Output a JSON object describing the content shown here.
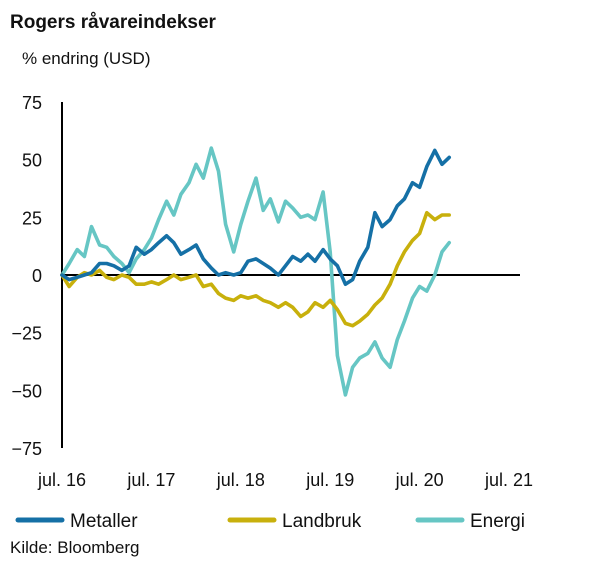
{
  "chart_data": {
    "type": "line",
    "title": "Rogers råvareindekser",
    "ylabel": "% endring (USD)",
    "ylim": [
      -75,
      75
    ],
    "yticks": [
      75,
      50,
      25,
      0,
      -25,
      -50,
      -75
    ],
    "xlim": [
      2016.5,
      2021.6
    ],
    "xticks": [
      {
        "value": 2016.5,
        "label": "jul. 16"
      },
      {
        "value": 2017.5,
        "label": "jul. 17"
      },
      {
        "value": 2018.5,
        "label": "jul. 18"
      },
      {
        "value": 2019.5,
        "label": "jul. 19"
      },
      {
        "value": 2020.5,
        "label": "jul. 20"
      },
      {
        "value": 2021.5,
        "label": "jul. 21"
      }
    ],
    "grid": false,
    "legend": "bottom",
    "source": "Kilde: Bloomberg",
    "series": [
      {
        "name": "Metaller",
        "color": "#1570a6",
        "points": [
          [
            2016.5,
            0
          ],
          [
            2016.58,
            -2
          ],
          [
            2016.67,
            -1
          ],
          [
            2016.75,
            0
          ],
          [
            2016.83,
            1
          ],
          [
            2016.92,
            5
          ],
          [
            2017.0,
            5
          ],
          [
            2017.08,
            4
          ],
          [
            2017.17,
            2
          ],
          [
            2017.25,
            4
          ],
          [
            2017.33,
            12
          ],
          [
            2017.42,
            9
          ],
          [
            2017.5,
            11
          ],
          [
            2017.58,
            14
          ],
          [
            2017.67,
            17
          ],
          [
            2017.75,
            14
          ],
          [
            2017.83,
            9
          ],
          [
            2017.92,
            11
          ],
          [
            2018.0,
            13
          ],
          [
            2018.08,
            7
          ],
          [
            2018.17,
            3
          ],
          [
            2018.25,
            0
          ],
          [
            2018.33,
            1
          ],
          [
            2018.42,
            0
          ],
          [
            2018.5,
            1
          ],
          [
            2018.58,
            6
          ],
          [
            2018.67,
            7
          ],
          [
            2018.75,
            5
          ],
          [
            2018.83,
            3
          ],
          [
            2018.92,
            0
          ],
          [
            2019.0,
            4
          ],
          [
            2019.08,
            8
          ],
          [
            2019.17,
            6
          ],
          [
            2019.25,
            9
          ],
          [
            2019.33,
            6
          ],
          [
            2019.42,
            11
          ],
          [
            2019.5,
            7
          ],
          [
            2019.58,
            4
          ],
          [
            2019.67,
            -4
          ],
          [
            2019.75,
            -2
          ],
          [
            2019.83,
            6
          ],
          [
            2019.92,
            12
          ],
          [
            2020.0,
            27
          ],
          [
            2020.08,
            21
          ],
          [
            2020.17,
            24
          ],
          [
            2020.25,
            30
          ],
          [
            2020.33,
            33
          ],
          [
            2020.42,
            40
          ],
          [
            2020.5,
            38
          ],
          [
            2020.58,
            47
          ],
          [
            2020.67,
            54
          ],
          [
            2020.75,
            48
          ],
          [
            2020.83,
            51
          ]
        ]
      },
      {
        "name": "Landbruk",
        "color": "#c8b00c",
        "points": [
          [
            2016.5,
            0
          ],
          [
            2016.58,
            -5
          ],
          [
            2016.67,
            -1
          ],
          [
            2016.75,
            1
          ],
          [
            2016.83,
            0
          ],
          [
            2016.92,
            2
          ],
          [
            2017.0,
            -1
          ],
          [
            2017.08,
            -2
          ],
          [
            2017.17,
            0
          ],
          [
            2017.25,
            -1
          ],
          [
            2017.33,
            -4
          ],
          [
            2017.42,
            -4
          ],
          [
            2017.5,
            -3
          ],
          [
            2017.58,
            -4
          ],
          [
            2017.67,
            -2
          ],
          [
            2017.75,
            0
          ],
          [
            2017.83,
            -2
          ],
          [
            2017.92,
            -1
          ],
          [
            2018.0,
            0
          ],
          [
            2018.08,
            -5
          ],
          [
            2018.17,
            -4
          ],
          [
            2018.25,
            -8
          ],
          [
            2018.33,
            -10
          ],
          [
            2018.42,
            -11
          ],
          [
            2018.5,
            -9
          ],
          [
            2018.58,
            -10
          ],
          [
            2018.67,
            -9
          ],
          [
            2018.75,
            -11
          ],
          [
            2018.83,
            -12
          ],
          [
            2018.92,
            -14
          ],
          [
            2019.0,
            -12
          ],
          [
            2019.08,
            -14
          ],
          [
            2019.17,
            -18
          ],
          [
            2019.25,
            -16
          ],
          [
            2019.33,
            -12
          ],
          [
            2019.42,
            -14
          ],
          [
            2019.5,
            -11
          ],
          [
            2019.58,
            -15
          ],
          [
            2019.67,
            -21
          ],
          [
            2019.75,
            -22
          ],
          [
            2019.83,
            -20
          ],
          [
            2019.92,
            -17
          ],
          [
            2020.0,
            -13
          ],
          [
            2020.08,
            -10
          ],
          [
            2020.17,
            -4
          ],
          [
            2020.25,
            4
          ],
          [
            2020.33,
            10
          ],
          [
            2020.42,
            15
          ],
          [
            2020.5,
            18
          ],
          [
            2020.58,
            27
          ],
          [
            2020.67,
            24
          ],
          [
            2020.75,
            26
          ],
          [
            2020.83,
            26
          ]
        ]
      },
      {
        "name": "Energi",
        "color": "#66c6c4",
        "points": [
          [
            2016.5,
            0
          ],
          [
            2016.58,
            5
          ],
          [
            2016.67,
            11
          ],
          [
            2016.75,
            8
          ],
          [
            2016.83,
            21
          ],
          [
            2016.92,
            13
          ],
          [
            2017.0,
            12
          ],
          [
            2017.08,
            8
          ],
          [
            2017.17,
            5
          ],
          [
            2017.25,
            1
          ],
          [
            2017.33,
            7
          ],
          [
            2017.42,
            11
          ],
          [
            2017.5,
            16
          ],
          [
            2017.58,
            24
          ],
          [
            2017.67,
            32
          ],
          [
            2017.75,
            26
          ],
          [
            2017.83,
            35
          ],
          [
            2017.92,
            40
          ],
          [
            2018.0,
            48
          ],
          [
            2018.08,
            42
          ],
          [
            2018.17,
            55
          ],
          [
            2018.25,
            45
          ],
          [
            2018.33,
            22
          ],
          [
            2018.42,
            10
          ],
          [
            2018.5,
            22
          ],
          [
            2018.58,
            32
          ],
          [
            2018.67,
            42
          ],
          [
            2018.75,
            28
          ],
          [
            2018.83,
            33
          ],
          [
            2018.92,
            23
          ],
          [
            2019.0,
            32
          ],
          [
            2019.08,
            29
          ],
          [
            2019.17,
            25
          ],
          [
            2019.25,
            26
          ],
          [
            2019.33,
            24
          ],
          [
            2019.42,
            36
          ],
          [
            2019.5,
            10
          ],
          [
            2019.58,
            -35
          ],
          [
            2019.67,
            -52
          ],
          [
            2019.75,
            -40
          ],
          [
            2019.83,
            -36
          ],
          [
            2019.92,
            -34
          ],
          [
            2020.0,
            -29
          ],
          [
            2020.08,
            -36
          ],
          [
            2020.17,
            -40
          ],
          [
            2020.25,
            -28
          ],
          [
            2020.33,
            -20
          ],
          [
            2020.42,
            -10
          ],
          [
            2020.5,
            -5
          ],
          [
            2020.58,
            -7
          ],
          [
            2020.67,
            0
          ],
          [
            2020.75,
            10
          ],
          [
            2020.83,
            14
          ]
        ]
      }
    ]
  }
}
